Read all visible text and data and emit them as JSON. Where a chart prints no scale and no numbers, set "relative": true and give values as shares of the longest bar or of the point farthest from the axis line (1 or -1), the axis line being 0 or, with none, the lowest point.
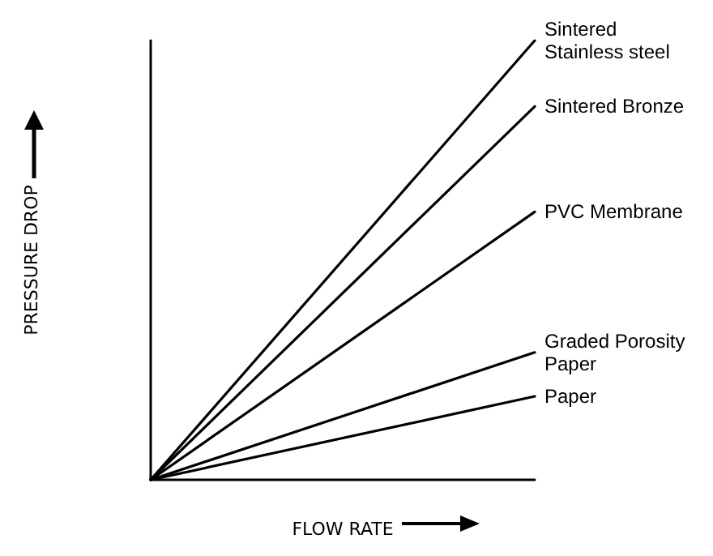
{
  "chart_data": {
    "type": "line",
    "relative": true,
    "xlabel": "FLOW RATE",
    "ylabel": "PRESSURE DROP",
    "categories": [
      null,
      null
    ],
    "grid": false,
    "legend": false,
    "marker": "none",
    "line_style": "solid",
    "series": [
      {
        "name": "Sintered Stainless steel",
        "color": "#000000",
        "values": [
          0,
          1
        ]
      },
      {
        "name": "Sintered Bronze",
        "color": "#000000",
        "values": [
          0,
          0.85
        ]
      },
      {
        "name": "PVC Membrane",
        "color": "#000000",
        "values": [
          0,
          0.61
        ]
      },
      {
        "name": "Graded Porosity Paper",
        "color": "#000000",
        "values": [
          0,
          0.29
        ]
      },
      {
        "name": "Paper",
        "color": "#000000",
        "values": [
          0,
          0.19
        ]
      }
    ]
  }
}
